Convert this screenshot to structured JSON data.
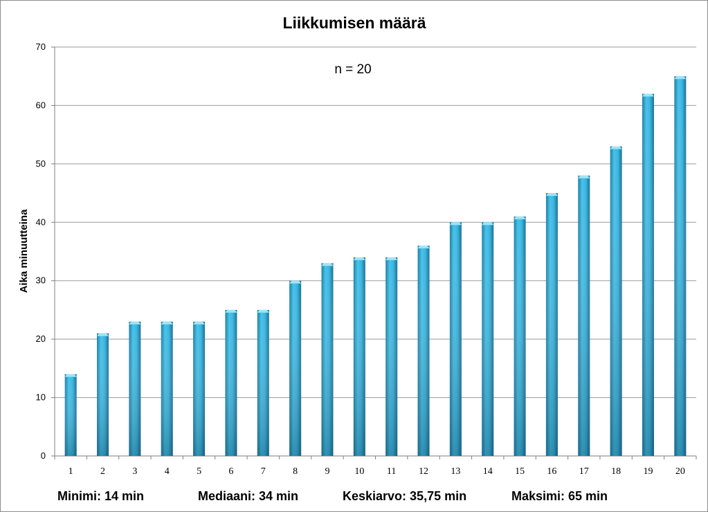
{
  "chart_data": {
    "type": "bar",
    "title": "Liikkumisen määrä",
    "annotation": "n = 20",
    "xlabel": "",
    "ylabel": "Aika minuutteina",
    "categories": [
      "1",
      "2",
      "3",
      "4",
      "5",
      "6",
      "7",
      "8",
      "9",
      "10",
      "11",
      "12",
      "13",
      "14",
      "15",
      "16",
      "17",
      "18",
      "19",
      "20"
    ],
    "values": [
      14,
      21,
      23,
      23,
      23,
      25,
      25,
      30,
      33,
      34,
      34,
      36,
      40,
      40,
      41,
      45,
      48,
      53,
      62,
      65
    ],
    "ylim": [
      0,
      70
    ],
    "yticks": [
      0,
      10,
      20,
      30,
      40,
      50,
      60,
      70
    ],
    "grid": true,
    "bar_color": "#2fa9d3"
  },
  "stats": {
    "min": "Minimi: 14 min",
    "median": "Mediaani: 34 min",
    "mean": "Keskiarvo: 35,75 min",
    "max": "Maksimi: 65 min"
  }
}
